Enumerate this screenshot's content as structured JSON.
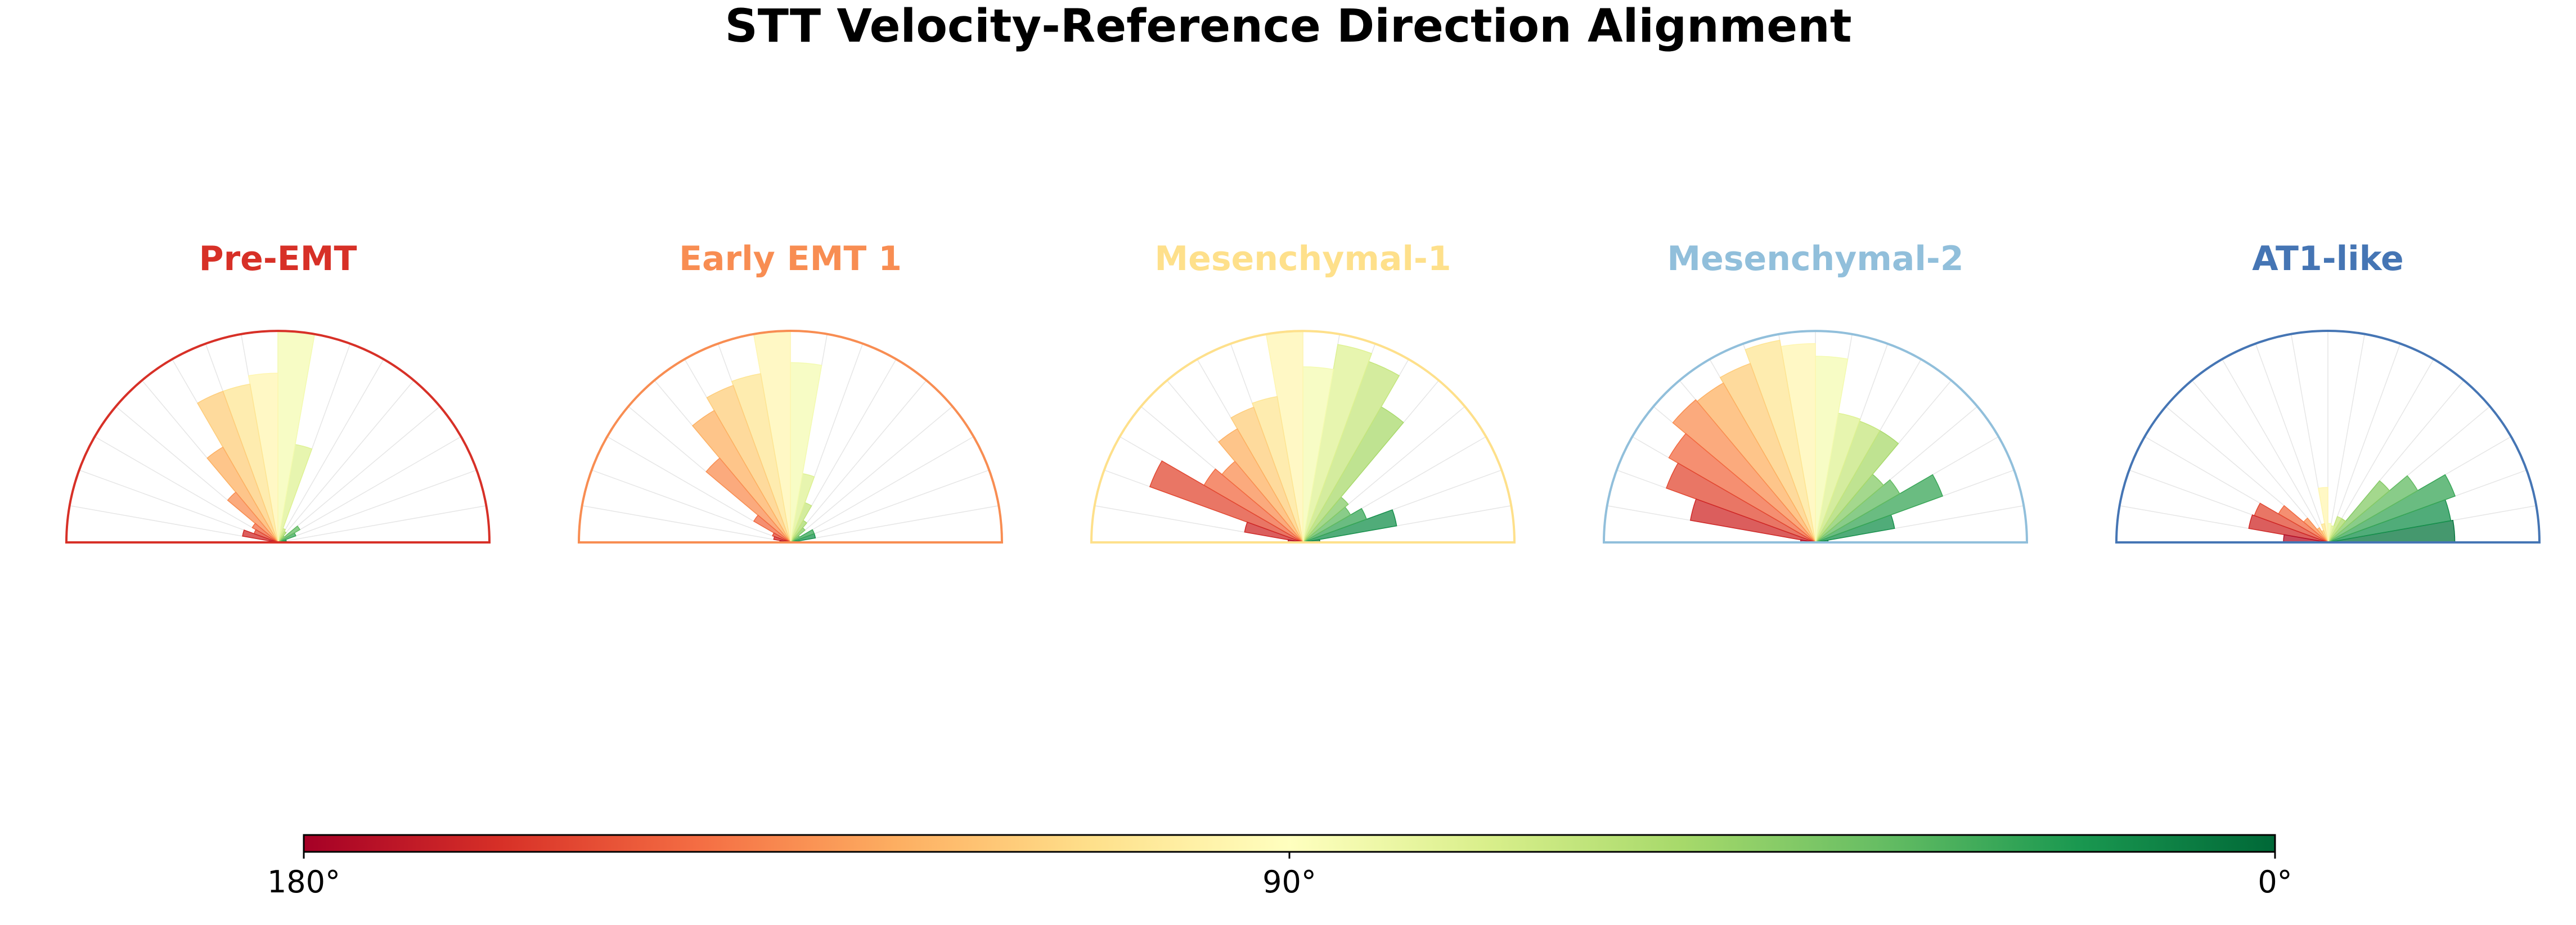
{
  "chart_data": {
    "type": "polar_histogram",
    "title": "STT Velocity-Reference Direction Alignment",
    "bin_count": 18,
    "bin_width_deg": 10,
    "bin_centers_deg": [
      5,
      15,
      25,
      35,
      45,
      55,
      65,
      75,
      85,
      95,
      105,
      115,
      125,
      135,
      145,
      155,
      165,
      175
    ],
    "radial_scale": "relative (max bar = 1.0)",
    "panels": [
      {
        "name": "Pre-EMT",
        "color": "#d73027",
        "values": [
          0.02,
          0.04,
          0.09,
          0.12,
          0.04,
          0.06,
          0.07,
          0.47,
          1.0,
          0.8,
          0.76,
          0.76,
          0.52,
          0.31,
          0.14,
          0.12,
          0.17,
          0.04
        ]
      },
      {
        "name": "Early EMT 1",
        "color": "#f88d52",
        "values": [
          0.03,
          0.12,
          0.12,
          0.05,
          0.09,
          0.12,
          0.2,
          0.33,
          0.85,
          1.0,
          0.81,
          0.79,
          0.72,
          0.52,
          0.2,
          0.09,
          0.08,
          0.05
        ]
      },
      {
        "name": "Mesenchymal-1",
        "color": "#fee08b",
        "values": [
          0.08,
          0.45,
          0.32,
          0.26,
          0.28,
          0.74,
          0.91,
          0.95,
          0.83,
          1.0,
          0.7,
          0.68,
          0.62,
          0.5,
          0.54,
          0.77,
          0.28,
          0.07
        ]
      },
      {
        "name": "Mesenchymal-2",
        "color": "#91bfdb",
        "values": [
          0.06,
          0.38,
          0.64,
          0.46,
          0.42,
          0.61,
          0.61,
          0.62,
          0.88,
          0.94,
          0.97,
          0.9,
          0.87,
          0.88,
          0.8,
          0.75,
          0.6,
          0.07
        ]
      },
      {
        "name": "AT1-like",
        "color": "#4575b4",
        "values": [
          0.6,
          0.59,
          0.64,
          0.49,
          0.38,
          0.13,
          0.13,
          0.08,
          0.09,
          0.26,
          0.09,
          0.06,
          0.08,
          0.15,
          0.27,
          0.37,
          0.38,
          0.21
        ]
      }
    ],
    "colorbar": {
      "colormap": "RdYlGn",
      "range_deg": [
        0,
        180
      ],
      "orientation": "horizontal",
      "ticks": [
        {
          "value": 180,
          "label": "180°"
        },
        {
          "value": 90,
          "label": "90°"
        },
        {
          "value": 0,
          "label": "0°"
        }
      ]
    }
  }
}
